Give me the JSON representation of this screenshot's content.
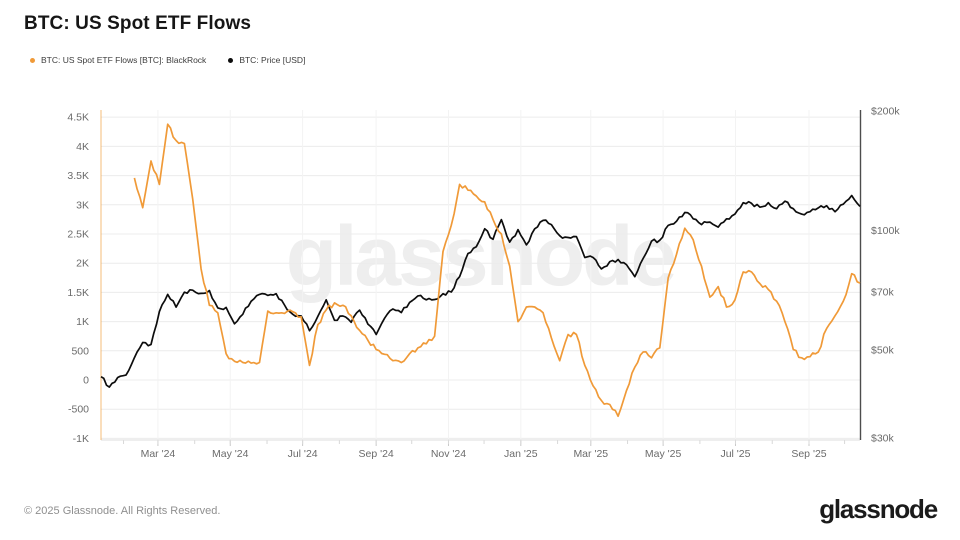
{
  "header": {
    "title": "BTC: US Spot ETF Flows"
  },
  "watermark_text": "glassnode",
  "footer": {
    "copyright": "© 2025 Glassnode. All Rights Reserved.",
    "logo_text": "glassnode"
  },
  "chart_data": {
    "type": "line",
    "title": "BTC: US Spot ETF Flows",
    "legend": {
      "position": "top-left",
      "entries": [
        {
          "label": "BTC: US Spot ETF Flows [BTC]: BlackRock",
          "color": "#F09A38"
        },
        {
          "label": "BTC: Price [USD]",
          "color": "#0D0D0D"
        }
      ]
    },
    "x_axis": {
      "span_days": 640,
      "grid": true,
      "major_ticks": [
        {
          "day": 48,
          "label": "Mar '24"
        },
        {
          "day": 109,
          "label": "May '24"
        },
        {
          "day": 170,
          "label": "Jul '24"
        },
        {
          "day": 232,
          "label": "Sep '24"
        },
        {
          "day": 293,
          "label": "Nov '24"
        },
        {
          "day": 354,
          "label": "Jan '25"
        },
        {
          "day": 413,
          "label": "Mar '25"
        },
        {
          "day": 474,
          "label": "May '25"
        },
        {
          "day": 535,
          "label": "Jul '25"
        },
        {
          "day": 597,
          "label": "Sep '25"
        }
      ],
      "minor_tick_days": [
        19,
        48,
        79,
        109,
        140,
        170,
        201,
        232,
        262,
        293,
        323,
        354,
        385,
        413,
        444,
        474,
        505,
        535,
        566,
        597,
        627
      ]
    },
    "left_axis": {
      "unit": "BTC",
      "scale": "linear",
      "grid": true,
      "tick_values": [
        4500,
        4000,
        3500,
        3000,
        2500,
        2000,
        1500,
        1000,
        500,
        0,
        -500,
        -1000
      ],
      "tick_labels": [
        "4.5K",
        "4K",
        "3.5K",
        "3K",
        "2.5K",
        "2K",
        "1.5K",
        "1K",
        "500",
        "0",
        "-500",
        "-1K"
      ],
      "range_btc": [
        -1027,
        4623
      ],
      "axis_line_color": "#F5C астральные"
    },
    "right_axis": {
      "unit": "USD",
      "scale": "log",
      "grid": false,
      "tick_values": [
        200000,
        100000,
        70000,
        50000,
        30000
      ],
      "tick_labels": [
        "$200k",
        "$100k",
        "$70k",
        "$50k",
        "$30k"
      ],
      "range_usd": [
        29650,
        201200
      ]
    },
    "sample_interval_days": 7,
    "series": [
      {
        "name": "BTC: US Spot ETF Flows [BTC]: BlackRock",
        "axis": "left",
        "color": "#F09A38",
        "unit": "thousand BTC",
        "values_k_btc": [
          null,
          null,
          null,
          null,
          3.46,
          2.95,
          3.75,
          3.35,
          4.38,
          4.1,
          4.05,
          3.1,
          1.9,
          1.28,
          1.15,
          0.45,
          0.32,
          0.3,
          0.29,
          0.3,
          1.18,
          1.15,
          1.14,
          1.17,
          1.08,
          0.25,
          0.95,
          1.2,
          1.32,
          1.28,
          1.1,
          0.85,
          0.68,
          0.52,
          0.44,
          0.33,
          0.3,
          0.45,
          0.55,
          0.62,
          0.75,
          2.2,
          2.65,
          3.35,
          3.25,
          3.15,
          3.05,
          2.75,
          2.5,
          1.95,
          1.0,
          1.25,
          1.25,
          1.15,
          0.72,
          0.33,
          0.78,
          0.78,
          0.25,
          -0.1,
          -0.35,
          -0.42,
          -0.62,
          -0.18,
          0.22,
          0.48,
          0.38,
          0.55,
          1.75,
          2.15,
          2.6,
          2.4,
          1.95,
          1.42,
          1.6,
          1.25,
          1.37,
          1.85,
          1.85,
          1.65,
          1.55,
          1.35,
          1.0,
          0.52,
          0.38,
          0.4,
          0.48,
          0.88,
          1.1,
          1.35,
          1.82,
          1.66
        ]
      },
      {
        "name": "BTC: Price [USD]",
        "axis": "right",
        "color": "#0D0D0D",
        "unit": "thousand USD",
        "values_k_usd": [
          42.8,
          40.3,
          42.6,
          43.2,
          47.8,
          52.2,
          51.6,
          62.5,
          69.0,
          64.1,
          69.9,
          70.7,
          69.4,
          70.6,
          63.8,
          64.0,
          58.2,
          61.5,
          66.3,
          69.0,
          68.6,
          69.3,
          64.9,
          61.5,
          60.9,
          55.9,
          60.8,
          66.9,
          59.4,
          60.9,
          58.7,
          63.0,
          58.1,
          54.7,
          60.1,
          63.4,
          62.1,
          65.9,
          68.4,
          66.9,
          67.0,
          69.3,
          70.0,
          76.5,
          87.5,
          91.0,
          101.0,
          95.0,
          106.5,
          93.5,
          100.5,
          92.0,
          101.0,
          106.0,
          103.5,
          97.0,
          96.0,
          96.5,
          85.5,
          85.5,
          80.0,
          83.5,
          84.5,
          82.0,
          76.5,
          85.0,
          94.0,
          94.5,
          103.0,
          105.5,
          111.0,
          107.0,
          103.5,
          105.0,
          102.0,
          107.0,
          110.0,
          117.5,
          117.0,
          114.5,
          117.5,
          113.5,
          118.5,
          113.5,
          110.0,
          111.5,
          114.0,
          115.5,
          111.5,
          116.5,
          122.5,
          115.0
        ]
      }
    ]
  }
}
